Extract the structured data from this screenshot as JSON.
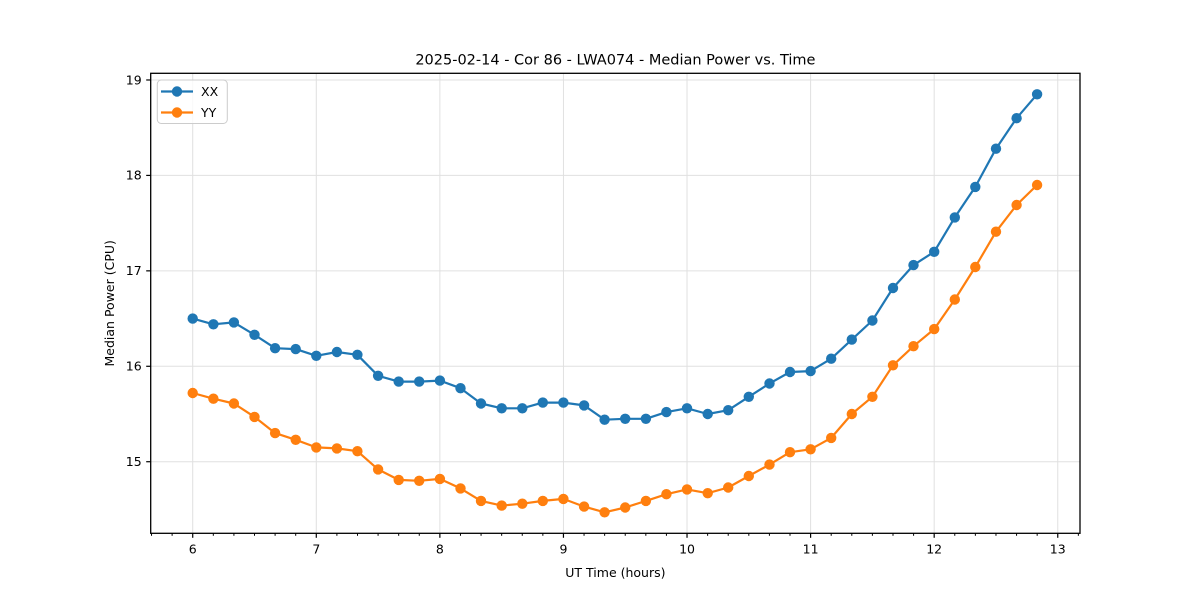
{
  "window": {
    "background": "#ffffff"
  },
  "chart_data": {
    "type": "line",
    "title": "2025-02-14 - Cor 86 - LWA074 - Median Power vs. Time",
    "xlabel": "UT Time (hours)",
    "ylabel": "Median Power (CPU)",
    "xlim": [
      5.66,
      13.18
    ],
    "ylim": [
      14.25,
      19.07
    ],
    "x_ticks": [
      6,
      7,
      8,
      9,
      10,
      11,
      12,
      13
    ],
    "y_ticks": [
      15,
      16,
      17,
      18,
      19
    ],
    "x_minor_per_unit": 6,
    "grid": true,
    "grid_color": "#e0e0e0",
    "legend_position": "upper left",
    "marker": "circle",
    "x": [
      6.0,
      6.167,
      6.333,
      6.5,
      6.667,
      6.833,
      7.0,
      7.167,
      7.333,
      7.5,
      7.667,
      7.833,
      8.0,
      8.167,
      8.333,
      8.5,
      8.667,
      8.833,
      9.0,
      9.167,
      9.333,
      9.5,
      9.667,
      9.833,
      10.0,
      10.167,
      10.333,
      10.5,
      10.667,
      10.833,
      11.0,
      11.167,
      11.333,
      11.5,
      11.667,
      11.833,
      12.0,
      12.167,
      12.333,
      12.5,
      12.667,
      12.833
    ],
    "series": [
      {
        "name": "XX",
        "color": "#1f77b4",
        "values": [
          16.5,
          16.44,
          16.46,
          16.33,
          16.19,
          16.18,
          16.11,
          16.15,
          16.12,
          15.9,
          15.84,
          15.84,
          15.85,
          15.77,
          15.61,
          15.56,
          15.56,
          15.62,
          15.62,
          15.59,
          15.44,
          15.45,
          15.45,
          15.52,
          15.56,
          15.5,
          15.54,
          15.68,
          15.82,
          15.94,
          15.95,
          16.08,
          16.28,
          16.48,
          16.82,
          17.06,
          17.2,
          17.56,
          17.88,
          18.28,
          18.6,
          18.85
        ]
      },
      {
        "name": "YY",
        "color": "#ff7f0e",
        "values": [
          15.72,
          15.66,
          15.61,
          15.47,
          15.3,
          15.23,
          15.15,
          15.14,
          15.11,
          14.92,
          14.81,
          14.8,
          14.82,
          14.72,
          14.59,
          14.54,
          14.56,
          14.59,
          14.61,
          14.53,
          14.47,
          14.52,
          14.59,
          14.66,
          14.71,
          14.67,
          14.73,
          14.85,
          14.97,
          15.1,
          15.13,
          15.25,
          15.5,
          15.68,
          16.01,
          16.21,
          16.39,
          16.7,
          17.04,
          17.41,
          17.69,
          17.9
        ]
      }
    ]
  }
}
